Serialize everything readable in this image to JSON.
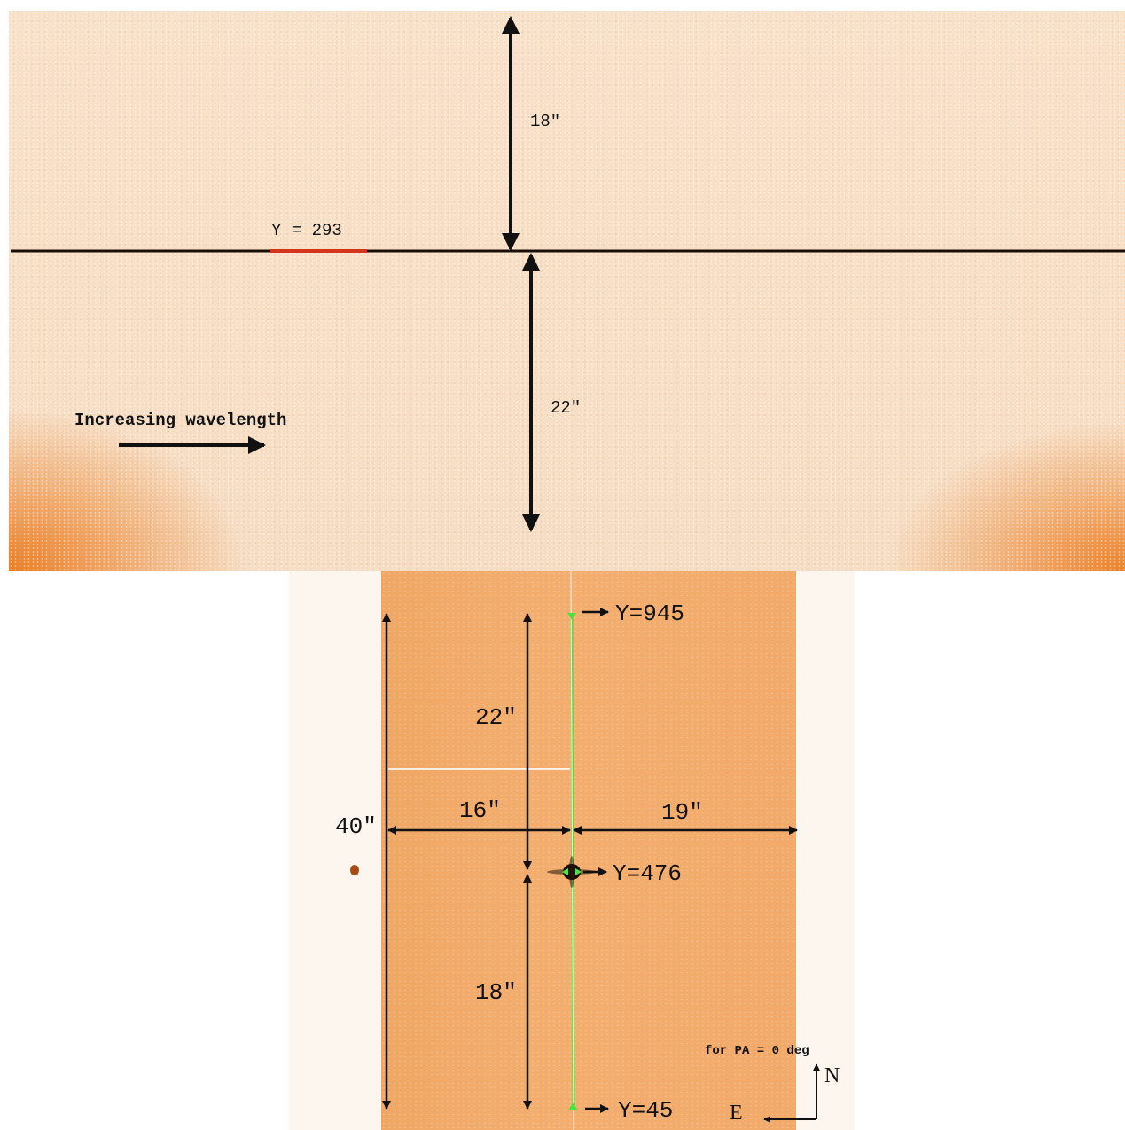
{
  "spectrum": {
    "row_label": "Y = 293",
    "upper_extent": "18\"",
    "lower_extent": "22\"",
    "wavelength_label": "Increasing wavelength"
  },
  "acquisition": {
    "y_top": "Y=945",
    "y_center": "Y=476",
    "y_bottom": "Y=45",
    "upper_extent": "22\"",
    "lower_extent": "18\"",
    "left_extent": "16\"",
    "right_extent": "19\"",
    "total_extent": "40\"",
    "pa_note": "for PA = 0 deg",
    "north": "N",
    "east": "E"
  },
  "colors": {
    "trace": "#1a0e06",
    "row_marker": "#d4341a",
    "slit": "#44e83c",
    "arrow": "#111111"
  }
}
